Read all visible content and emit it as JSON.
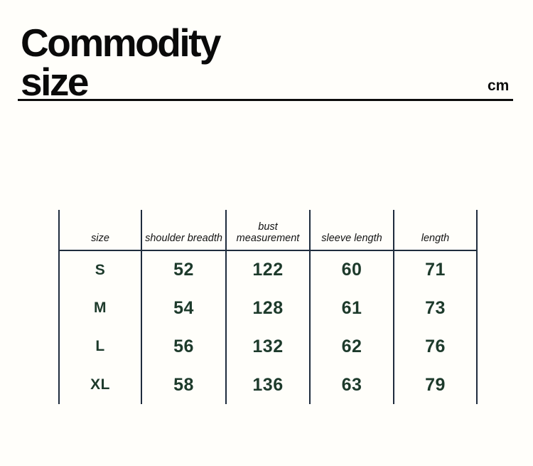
{
  "header": {
    "title_line1": "Commodity",
    "title_line2": "size",
    "unit": "cm"
  },
  "table": {
    "columns": [
      "size",
      "shoulder breadth",
      "bust measurement",
      "sleeve length",
      "length"
    ],
    "rows": [
      {
        "label": "S",
        "values": [
          "52",
          "122",
          "60",
          "71"
        ]
      },
      {
        "label": "M",
        "values": [
          "54",
          "128",
          "61",
          "73"
        ]
      },
      {
        "label": "L",
        "values": [
          "56",
          "132",
          "62",
          "76"
        ]
      },
      {
        "label": "XL",
        "values": [
          "58",
          "136",
          "63",
          "79"
        ]
      }
    ]
  },
  "chart_data": {
    "type": "table",
    "title": "Commodity size",
    "unit": "cm",
    "columns": [
      "size",
      "shoulder breadth",
      "bust measurement",
      "sleeve length",
      "length"
    ],
    "rows": [
      [
        "S",
        52,
        122,
        60,
        71
      ],
      [
        "M",
        54,
        128,
        61,
        73
      ],
      [
        "L",
        56,
        132,
        62,
        76
      ],
      [
        "XL",
        58,
        136,
        63,
        79
      ]
    ],
    "layout_hints": {
      "grid": "vertical column separators and single horizontal line under header only",
      "value_text_color": "#1d3a2b",
      "grid_line_color": "#1f2c3d"
    }
  },
  "colors": {
    "value_text": "#1d3a2b",
    "grid_line": "#1f2c3d",
    "title_text": "#0a0a0a"
  }
}
